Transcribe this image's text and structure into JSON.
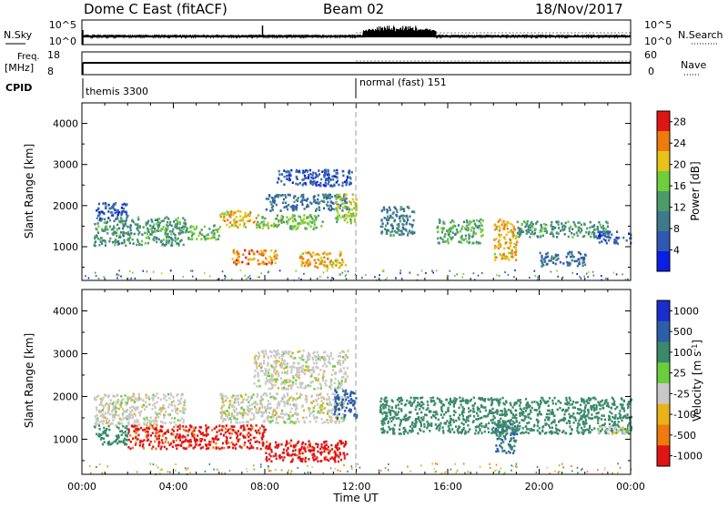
{
  "header": {
    "station": "Dome C East (fitACF)",
    "beam": "Beam 02",
    "date": "18/Nov/2017"
  },
  "strips": {
    "nsky_label": "N.Sky",
    "nsky_ticks": [
      "10^5",
      "10^0"
    ],
    "nsearch_label": "N.Search",
    "nsearch_ticks": [
      "10^5",
      "10^0"
    ],
    "freq_label_line1": "Freq.",
    "freq_label_line2": "[MHz]",
    "freq_ticks": [
      "18",
      "8"
    ],
    "nave_label": "Nave",
    "nave_ticks": [
      "60",
      "0"
    ],
    "cpid_label": "CPID",
    "cpid_segments": [
      {
        "name": "themis 3300",
        "start_hour": 0
      },
      {
        "name": "normal (fast) 151",
        "start_hour": 12
      }
    ]
  },
  "x_axis": {
    "title": "Time UT",
    "tick_labels": [
      "00:00",
      "04:00",
      "08:00",
      "12:00",
      "16:00",
      "20:00",
      "00:00"
    ],
    "range_hours": [
      0,
      24
    ]
  },
  "chart_data": [
    {
      "type": "heatmap",
      "title": "",
      "xlabel": "Time UT",
      "ylabel": "Slant Range [km]",
      "xlim": [
        0,
        24
      ],
      "ylim": [
        180,
        4500
      ],
      "yticks": [
        "1000",
        "2000",
        "3000",
        "4000"
      ],
      "colorbar": {
        "label": "Power [dB]",
        "ticks": [
          "4",
          "8",
          "12",
          "16",
          "20",
          "24",
          "28"
        ],
        "range": [
          0,
          30
        ],
        "colors": [
          "#0a1ee6",
          "#2f58b4",
          "#3d7a8c",
          "#4d9a6a",
          "#6fcf3a",
          "#e6c21a",
          "#ef7a0d",
          "#e01515"
        ]
      },
      "echo_regions": [
        {
          "t0": 0.5,
          "t1": 4.5,
          "r0": 1050,
          "r1": 1750,
          "level": 12
        },
        {
          "t0": 0.6,
          "t1": 2.0,
          "r0": 1700,
          "r1": 2100,
          "level": 6
        },
        {
          "t0": 4.5,
          "t1": 6.0,
          "r0": 1200,
          "r1": 1550,
          "level": 15
        },
        {
          "t0": 6.0,
          "t1": 7.6,
          "r0": 1500,
          "r1": 1900,
          "level": 21
        },
        {
          "t0": 6.5,
          "t1": 8.5,
          "r0": 600,
          "r1": 950,
          "level": 24
        },
        {
          "t0": 7.6,
          "t1": 10.5,
          "r0": 1450,
          "r1": 1800,
          "level": 16
        },
        {
          "t0": 8.0,
          "t1": 11.6,
          "r0": 1900,
          "r1": 2300,
          "level": 8
        },
        {
          "t0": 8.5,
          "t1": 11.8,
          "r0": 2500,
          "r1": 2900,
          "level": 6
        },
        {
          "t0": 9.5,
          "t1": 11.5,
          "r0": 500,
          "r1": 900,
          "level": 22
        },
        {
          "t0": 11.0,
          "t1": 12.0,
          "r0": 1600,
          "r1": 2300,
          "level": 18
        },
        {
          "t0": 13.0,
          "t1": 14.5,
          "r0": 1300,
          "r1": 2000,
          "level": 10
        },
        {
          "t0": 15.5,
          "t1": 17.5,
          "r0": 1100,
          "r1": 1700,
          "level": 14
        },
        {
          "t0": 18.0,
          "t1": 19.0,
          "r0": 700,
          "r1": 1700,
          "level": 22
        },
        {
          "t0": 19.0,
          "t1": 23.0,
          "r0": 1250,
          "r1": 1650,
          "level": 12
        },
        {
          "t0": 20.0,
          "t1": 22.0,
          "r0": 550,
          "r1": 900,
          "level": 8
        },
        {
          "t0": 22.5,
          "t1": 24.0,
          "r0": 1100,
          "r1": 1400,
          "level": 7
        }
      ]
    },
    {
      "type": "heatmap",
      "title": "",
      "xlabel": "Time UT",
      "ylabel": "Slant Range [km]",
      "xlim": [
        0,
        24
      ],
      "ylim": [
        180,
        4500
      ],
      "yticks": [
        "1000",
        "2000",
        "3000",
        "4000"
      ],
      "colorbar": {
        "label": "Velocity [m s^-1]",
        "ticks": [
          "1000",
          "500",
          "100",
          "25",
          "-25",
          "-100",
          "-500",
          "-1000"
        ],
        "colors": [
          "#1a2ecf",
          "#2c5fa8",
          "#3a8a6a",
          "#6acd3c",
          "#c8c8c8",
          "#e8b21a",
          "#ef7a0d",
          "#e01515"
        ],
        "gray_band": "ground scatter"
      },
      "echo_regions": [
        {
          "t0": 0.5,
          "t1": 2.0,
          "r0": 900,
          "r1": 1350,
          "level": 100
        },
        {
          "t0": 0.5,
          "t1": 4.5,
          "r0": 1350,
          "r1": 2100,
          "level": 0
        },
        {
          "t0": 2.0,
          "t1": 8.0,
          "r0": 800,
          "r1": 1350,
          "level": -400
        },
        {
          "t0": 6.0,
          "t1": 11.5,
          "r0": 1400,
          "r1": 2100,
          "level": 0
        },
        {
          "t0": 7.5,
          "t1": 11.6,
          "r0": 2200,
          "r1": 3100,
          "level": 0
        },
        {
          "t0": 8.0,
          "t1": 11.6,
          "r0": 500,
          "r1": 1000,
          "level": -450
        },
        {
          "t0": 11.0,
          "t1": 12.0,
          "r0": 1500,
          "r1": 2200,
          "level": 500
        },
        {
          "t0": 13.0,
          "t1": 24.0,
          "r0": 1150,
          "r1": 2000,
          "level": 200
        },
        {
          "t0": 18.0,
          "t1": 19.0,
          "r0": 700,
          "r1": 1500,
          "level": 300
        },
        {
          "t0": 22.5,
          "t1": 24.0,
          "r0": 1150,
          "r1": 1350,
          "level": 0
        }
      ]
    }
  ]
}
